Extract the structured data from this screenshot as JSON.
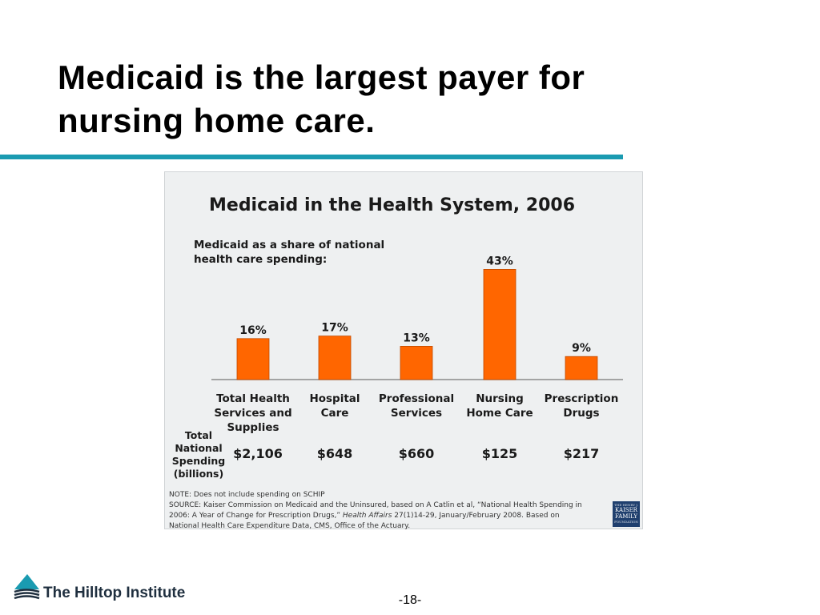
{
  "slide": {
    "title": "Medicaid is the largest payer for\nnursing home care.",
    "page_number": "-18-",
    "rule_color": "#1a9bb1"
  },
  "chart_data": {
    "type": "bar",
    "title": "Medicaid in the Health System, 2006",
    "subtitle": [
      "Medicaid as a share of national",
      "health care spending:"
    ],
    "categories": [
      [
        "Total Health",
        "Services and",
        "Supplies"
      ],
      [
        "Hospital",
        "Care"
      ],
      [
        "Professional",
        "Services"
      ],
      [
        "Nursing",
        "Home Care"
      ],
      [
        "Prescription",
        "Drugs"
      ]
    ],
    "values": [
      16,
      17,
      13,
      43,
      9
    ],
    "value_labels": [
      "16%",
      "17%",
      "13%",
      "43%",
      "9%"
    ],
    "unit": "%",
    "ylim": [
      0,
      45
    ],
    "bar_color": "#ff6600",
    "spending_label": [
      "Total",
      "National",
      "Spending",
      "(billions)"
    ],
    "spending_values": [
      "$2,106",
      "$648",
      "$660",
      "$125",
      "$217"
    ],
    "note": [
      "NOTE: Does not include spending on SCHIP",
      "SOURCE: Kaiser Commission on Medicaid and the Uninsured, based on A Catlin et al, “National Health Spending in",
      "2006: A Year of Change for Prescription Drugs,” ",
      "Health Affairs",
      " 27(1)14-29, January/February 2008.  Based on",
      "National Health Care Expenditure Data, CMS, Office of the Actuary."
    ],
    "grid": false,
    "legend": "none"
  },
  "logos": {
    "kff": [
      "THE HENRY J.",
      "KAISER",
      "FAMILY",
      "FOUNDATION"
    ],
    "hilltop": "The Hilltop Institute",
    "hilltop_color": "#1a9bb1"
  }
}
